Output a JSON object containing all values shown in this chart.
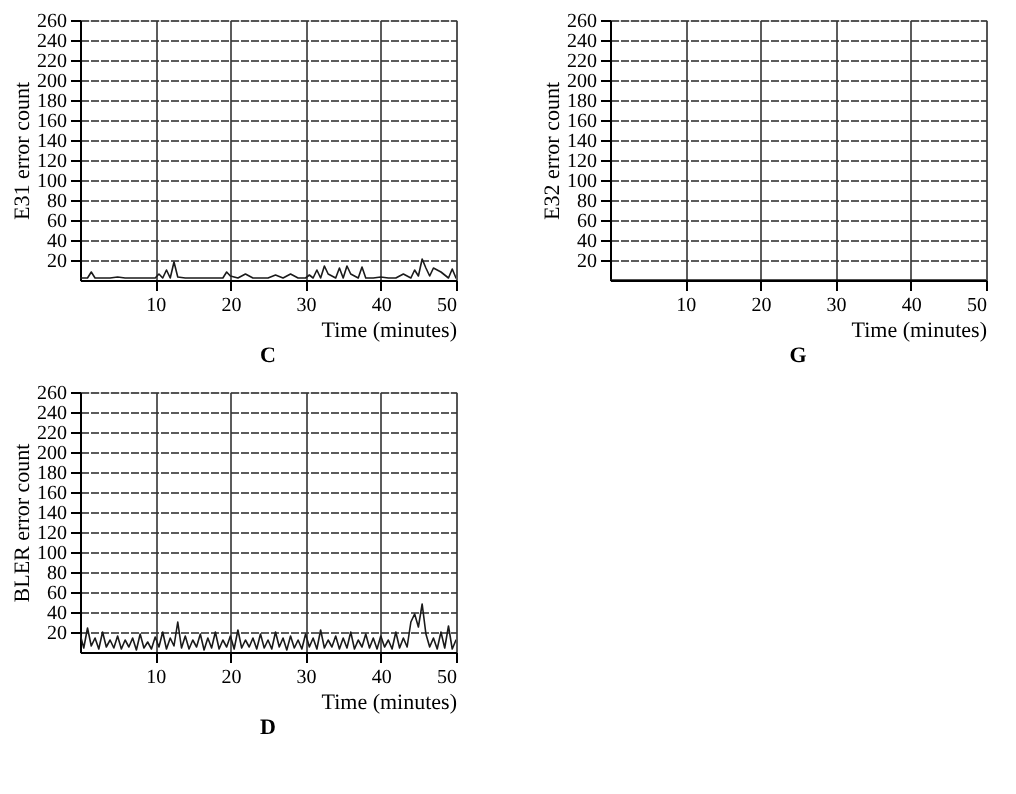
{
  "chart_data": [
    {
      "type": "line",
      "title": "C",
      "xlabel": "Time (minutes)",
      "ylabel": "E31 error count",
      "xlim": [
        0,
        50
      ],
      "ylim": [
        0,
        260
      ],
      "xticks": [
        10,
        20,
        30,
        40,
        50
      ],
      "yticks": [
        20,
        40,
        60,
        80,
        100,
        120,
        140,
        160,
        180,
        200,
        220,
        240,
        260
      ],
      "grid": true,
      "series": [
        {
          "color": "#1a1a1a",
          "x": [
            0,
            1,
            1.5,
            2,
            3,
            4,
            5,
            6,
            7,
            8,
            9,
            10,
            10.5,
            11,
            11.5,
            12,
            12.5,
            13,
            14,
            15,
            16,
            17,
            18,
            19,
            19.5,
            20,
            21,
            22,
            23,
            24,
            25,
            26,
            27,
            28,
            29,
            30,
            30.5,
            31,
            31.5,
            32,
            32.5,
            33,
            34,
            34.5,
            35,
            35.5,
            36,
            37,
            37.5,
            38,
            39,
            40,
            41,
            42,
            43,
            44,
            44.5,
            45,
            45.5,
            46,
            46.5,
            47,
            48,
            49,
            49.5,
            50
          ],
          "values": [
            2,
            2,
            8,
            2,
            2,
            2,
            3,
            2,
            2,
            2,
            2,
            2,
            6,
            2,
            10,
            2,
            18,
            3,
            2,
            2,
            2,
            2,
            2,
            2,
            8,
            4,
            2,
            6,
            2,
            2,
            2,
            5,
            2,
            6,
            2,
            2,
            5,
            2,
            10,
            2,
            14,
            6,
            2,
            12,
            2,
            14,
            6,
            2,
            13,
            2,
            2,
            3,
            2,
            2,
            6,
            2,
            10,
            4,
            21,
            12,
            4,
            12,
            8,
            2,
            11,
            2
          ]
        }
      ]
    },
    {
      "type": "line",
      "title": "G",
      "xlabel": "Time (minutes)",
      "ylabel": "E32 error count",
      "xlim": [
        0,
        50
      ],
      "ylim": [
        0,
        260
      ],
      "xticks": [
        10,
        20,
        30,
        40,
        50
      ],
      "yticks": [
        20,
        40,
        60,
        80,
        100,
        120,
        140,
        160,
        180,
        200,
        220,
        240,
        260
      ],
      "grid": true,
      "series": [
        {
          "color": "#1a1a1a",
          "x": [
            0,
            50
          ],
          "values": [
            0,
            0
          ]
        }
      ]
    },
    {
      "type": "line",
      "title": "D",
      "xlabel": "Time (minutes)",
      "ylabel": "BLER error count",
      "xlim": [
        0,
        50
      ],
      "ylim": [
        0,
        260
      ],
      "xticks": [
        10,
        20,
        30,
        40,
        50
      ],
      "yticks": [
        20,
        40,
        60,
        80,
        100,
        120,
        140,
        160,
        180,
        200,
        220,
        240,
        260
      ],
      "grid": true,
      "series": [
        {
          "color": "#1a1a1a",
          "x": [
            0,
            0.5,
            1,
            1.5,
            2,
            2.5,
            3,
            3.5,
            4,
            4.5,
            5,
            5.5,
            6,
            6.5,
            7,
            7.5,
            8,
            8.5,
            9,
            9.5,
            10,
            10.5,
            11,
            11.5,
            12,
            12.5,
            13,
            13.5,
            14,
            14.5,
            15,
            15.5,
            16,
            16.5,
            17,
            17.5,
            18,
            18.5,
            19,
            19.5,
            20,
            20.5,
            21,
            21.5,
            22,
            22.5,
            23,
            23.5,
            24,
            24.5,
            25,
            25.5,
            26,
            26.5,
            27,
            27.5,
            28,
            28.5,
            29,
            29.5,
            30,
            30.5,
            31,
            31.5,
            32,
            32.5,
            33,
            33.5,
            34,
            34.5,
            35,
            35.5,
            36,
            36.5,
            37,
            37.5,
            38,
            38.5,
            39,
            39.5,
            40,
            40.5,
            41,
            41.5,
            42,
            42.5,
            43,
            43.5,
            44,
            44.5,
            45,
            45.5,
            46,
            46.5,
            47,
            47.5,
            48,
            48.5,
            49,
            49.5,
            50
          ],
          "values": [
            18,
            4,
            24,
            6,
            14,
            3,
            20,
            5,
            12,
            4,
            16,
            3,
            12,
            5,
            14,
            2,
            18,
            4,
            10,
            3,
            15,
            5,
            20,
            3,
            14,
            6,
            30,
            4,
            16,
            3,
            12,
            5,
            18,
            2,
            14,
            4,
            20,
            3,
            12,
            5,
            16,
            3,
            22,
            4,
            12,
            5,
            14,
            3,
            18,
            4,
            12,
            3,
            20,
            5,
            14,
            2,
            16,
            4,
            12,
            3,
            18,
            5,
            14,
            3,
            22,
            4,
            12,
            5,
            16,
            3,
            14,
            4,
            20,
            3,
            12,
            5,
            18,
            4,
            14,
            3,
            16,
            5,
            12,
            3,
            20,
            4,
            14,
            5,
            30,
            38,
            25,
            48,
            18,
            5,
            14,
            3,
            20,
            4,
            26,
            3,
            12
          ]
        }
      ]
    }
  ]
}
